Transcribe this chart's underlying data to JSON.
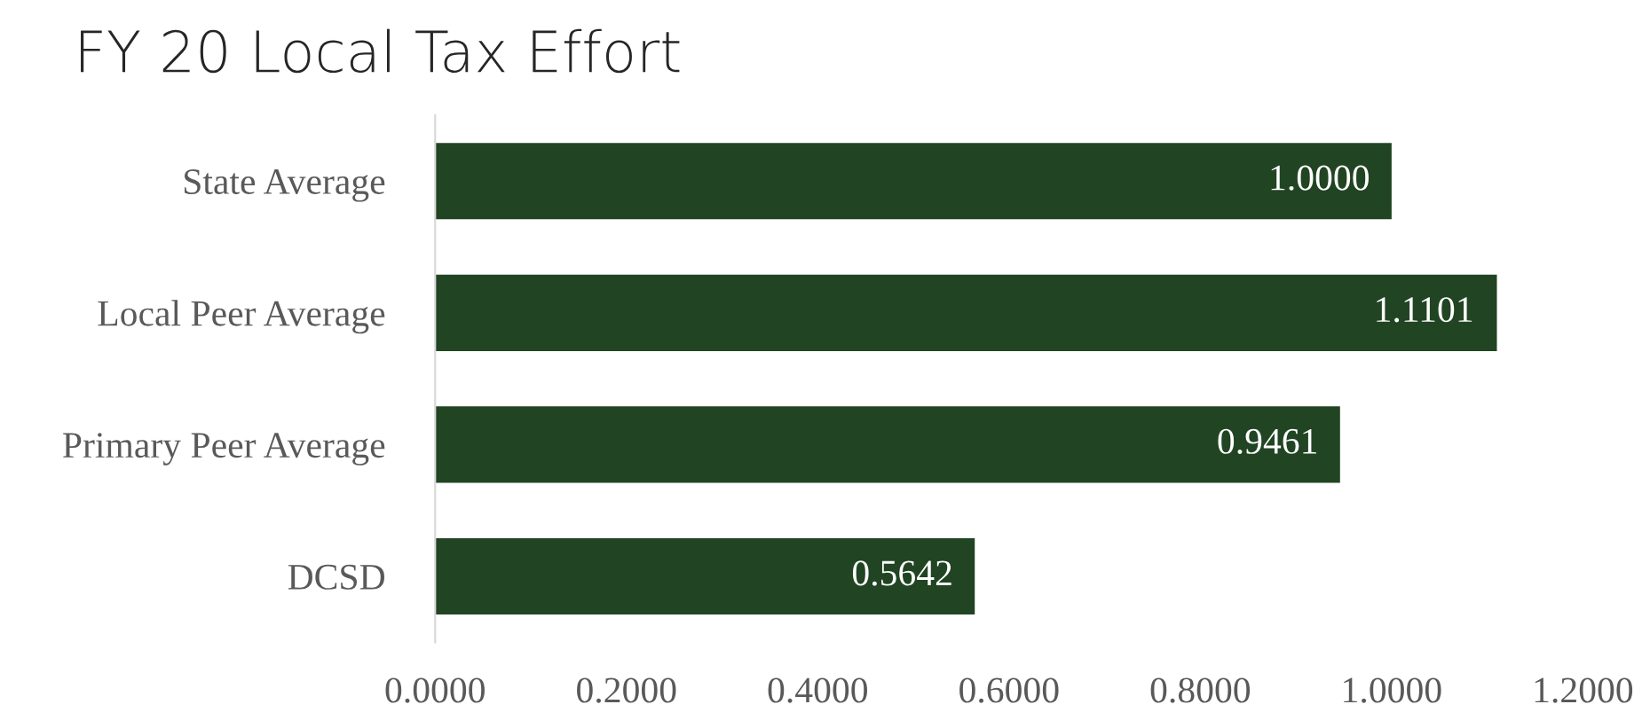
{
  "chart_data": {
    "type": "bar",
    "orientation": "horizontal",
    "title": "FY 20 Local Tax Effort",
    "categories": [
      "State Average",
      "Local Peer Average",
      "Primary Peer Average",
      "DCSD"
    ],
    "values": [
      1.0,
      1.1101,
      0.9461,
      0.5642
    ],
    "value_labels": [
      "1.0000",
      "1.1101",
      "0.9461",
      "0.5642"
    ],
    "color": "#214423",
    "xlim": [
      0,
      1.2
    ],
    "xticks": [
      {
        "value": 0,
        "label": "0.0000"
      },
      {
        "value": 0.2,
        "label": "0.2000"
      },
      {
        "value": 0.4,
        "label": "0.4000"
      },
      {
        "value": 0.6,
        "label": "0.6000"
      },
      {
        "value": 0.8,
        "label": "0.8000"
      },
      {
        "value": 1.0,
        "label": "1.0000"
      },
      {
        "value": 1.2,
        "label": "1.2000"
      }
    ],
    "grid": false,
    "legend": false
  }
}
